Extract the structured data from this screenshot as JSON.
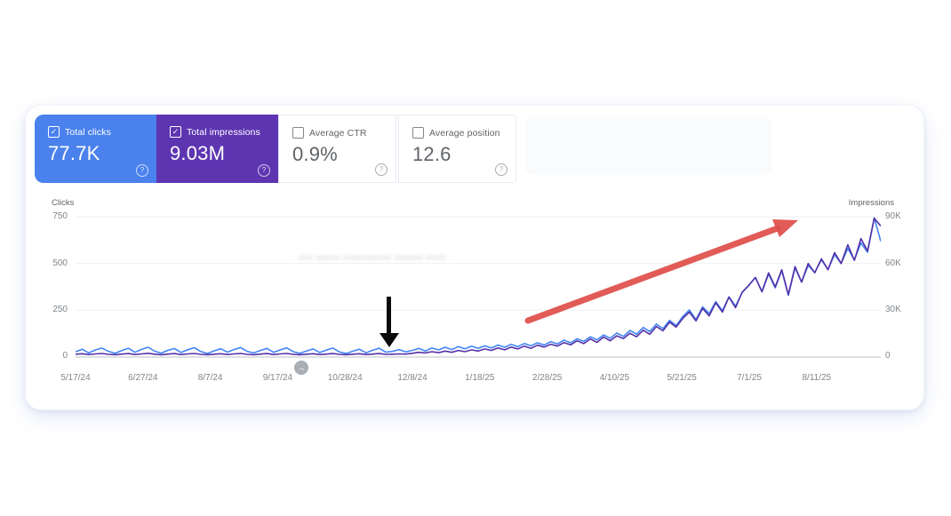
{
  "metrics": [
    {
      "label": "Total clicks",
      "value": "77.7K",
      "selected": true
    },
    {
      "label": "Total impressions",
      "value": "9.03M",
      "selected": true
    },
    {
      "label": "Average CTR",
      "value": "0.9%",
      "selected": false
    },
    {
      "label": "Average position",
      "value": "12.6",
      "selected": false
    }
  ],
  "icons": {
    "checked": "✓",
    "help": "?",
    "scrubber_arrow": "→"
  },
  "colors": {
    "clicks_card": "#4a81ec",
    "impressions_card": "#5e35b1",
    "clicks_line": "#4285f4",
    "impressions_line": "#5531a7",
    "red_arrow": "#df4f4b"
  },
  "annotations": {
    "blurred_text": "### ##### ########## ###### ####",
    "red_arrow_meaning": "upward-trend-arrow",
    "black_arrow_meaning": "event-marker-arrow"
  },
  "chart_data": {
    "type": "line",
    "grid": true,
    "x_ticks": [
      "5/17/24",
      "6/27/24",
      "8/7/24",
      "9/17/24",
      "10/28/24",
      "12/8/24",
      "1/18/25",
      "2/28/25",
      "4/10/25",
      "5/21/25",
      "7/1/25",
      "8/11/25"
    ],
    "left_axis": {
      "title": "Clicks",
      "ticks": [
        "750",
        "500",
        "250",
        "0"
      ],
      "max": 750
    },
    "right_axis": {
      "title": "Impressions",
      "ticks": [
        "90K",
        "60K",
        "30K",
        "0"
      ],
      "max": 90000
    },
    "series": [
      {
        "name": "Clicks",
        "axis": "left",
        "color": "#4285f4",
        "values": [
          28,
          42,
          22,
          38,
          48,
          30,
          20,
          34,
          47,
          25,
          41,
          52,
          31,
          21,
          36,
          45,
          24,
          39,
          50,
          29,
          19,
          33,
          44,
          26,
          40,
          51,
          30,
          22,
          35,
          46,
          25,
          38,
          49,
          28,
          20,
          32,
          43,
          24,
          37,
          48,
          27,
          19,
          31,
          42,
          23,
          36,
          47,
          26,
          30,
          40,
          28,
          35,
          46,
          32,
          48,
          38,
          52,
          40,
          56,
          44,
          58,
          46,
          60,
          48,
          64,
          52,
          68,
          56,
          72,
          60,
          76,
          64,
          82,
          70,
          90,
          76,
          98,
          84,
          108,
          92,
          118,
          100,
          128,
          110,
          142,
          122,
          158,
          136,
          176,
          152,
          196,
          168,
          216,
          252,
          200,
          268,
          232,
          296,
          248,
          322,
          272,
          344,
          382,
          426,
          348,
          444,
          370,
          462,
          330,
          476,
          400,
          490,
          452,
          520,
          468,
          548,
          500,
          580,
          520,
          610,
          560,
          745,
          618
        ]
      },
      {
        "name": "Impressions",
        "axis": "right",
        "color": "#5531a7",
        "values": [
          1800,
          2100,
          1600,
          2000,
          2300,
          1700,
          1500,
          1900,
          2200,
          1600,
          2000,
          2400,
          1800,
          1500,
          1900,
          2200,
          1600,
          2000,
          2300,
          1700,
          1500,
          1800,
          2100,
          1600,
          2000,
          2300,
          1700,
          1500,
          1900,
          2200,
          1600,
          2000,
          2300,
          1700,
          1500,
          1800,
          2100,
          1600,
          1900,
          2200,
          1700,
          1500,
          1800,
          2100,
          1600,
          1900,
          2200,
          1700,
          1800,
          2000,
          1900,
          2400,
          3000,
          2600,
          3400,
          2800,
          3800,
          3000,
          4200,
          3400,
          4600,
          3800,
          5200,
          4200,
          5800,
          4600,
          6400,
          5200,
          7000,
          5600,
          7600,
          6400,
          8200,
          7000,
          9200,
          7800,
          10400,
          8600,
          11600,
          9400,
          12800,
          10400,
          13600,
          11800,
          15200,
          13000,
          17200,
          14600,
          19600,
          16800,
          22400,
          19200,
          24800,
          28800,
          23200,
          31200,
          26400,
          34800,
          28800,
          38400,
          31600,
          41600,
          46000,
          51000,
          42000,
          54000,
          45000,
          56000,
          40000,
          58000,
          48000,
          60000,
          54000,
          63000,
          56000,
          67000,
          60000,
          72000,
          62000,
          76000,
          68000,
          89000,
          84000
        ]
      }
    ]
  }
}
